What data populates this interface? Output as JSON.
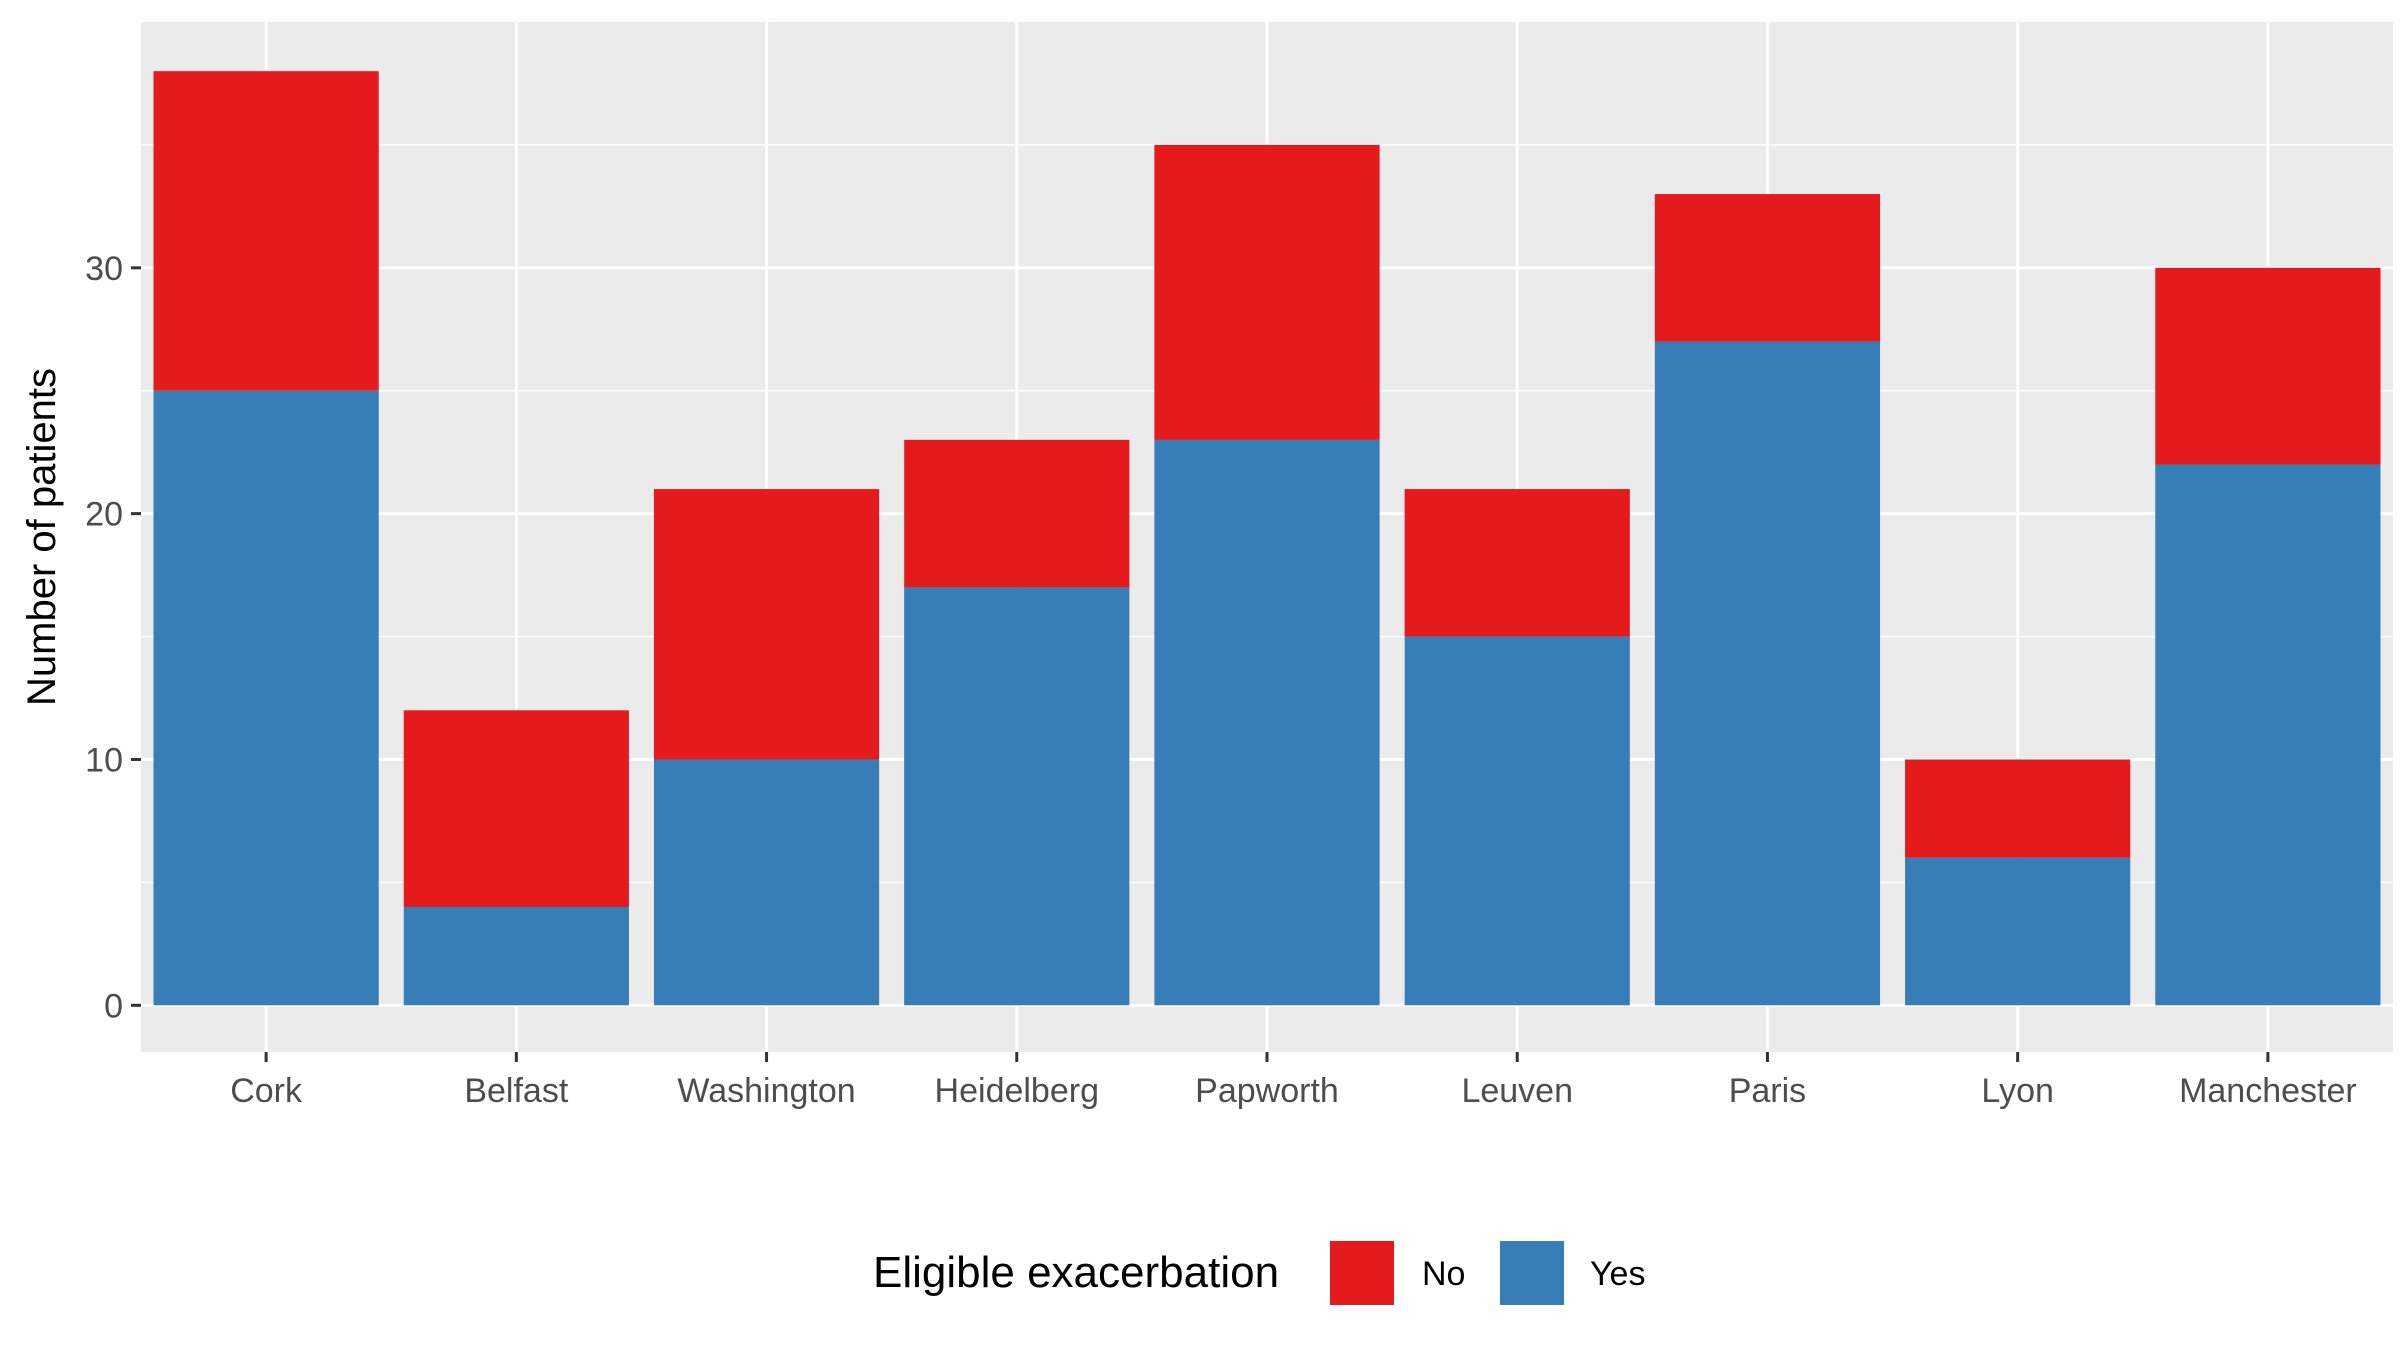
{
  "chart_data": {
    "type": "bar",
    "stacked": true,
    "categories": [
      "Cork",
      "Belfast",
      "Washington",
      "Heidelberg",
      "Papworth",
      "Leuven",
      "Paris",
      "Lyon",
      "Manchester"
    ],
    "series": [
      {
        "name": "Yes",
        "color": "#377EB8",
        "values": [
          25,
          4,
          10,
          17,
          23,
          15,
          27,
          6,
          22
        ]
      },
      {
        "name": "No",
        "color": "#E41A1C",
        "values": [
          13,
          8,
          11,
          6,
          12,
          6,
          6,
          4,
          8
        ]
      }
    ],
    "stack_order": [
      "Yes",
      "No"
    ],
    "title": "",
    "xlabel": "",
    "ylabel": "Number of patients",
    "ylim": [
      -1.9,
      40
    ],
    "yticks": [
      0,
      10,
      20,
      30
    ],
    "grid": true,
    "panel_background": "#EBEBEB",
    "legend": {
      "position": "bottom",
      "title": "Eligible exacerbation",
      "order": [
        "No",
        "Yes"
      ]
    }
  }
}
